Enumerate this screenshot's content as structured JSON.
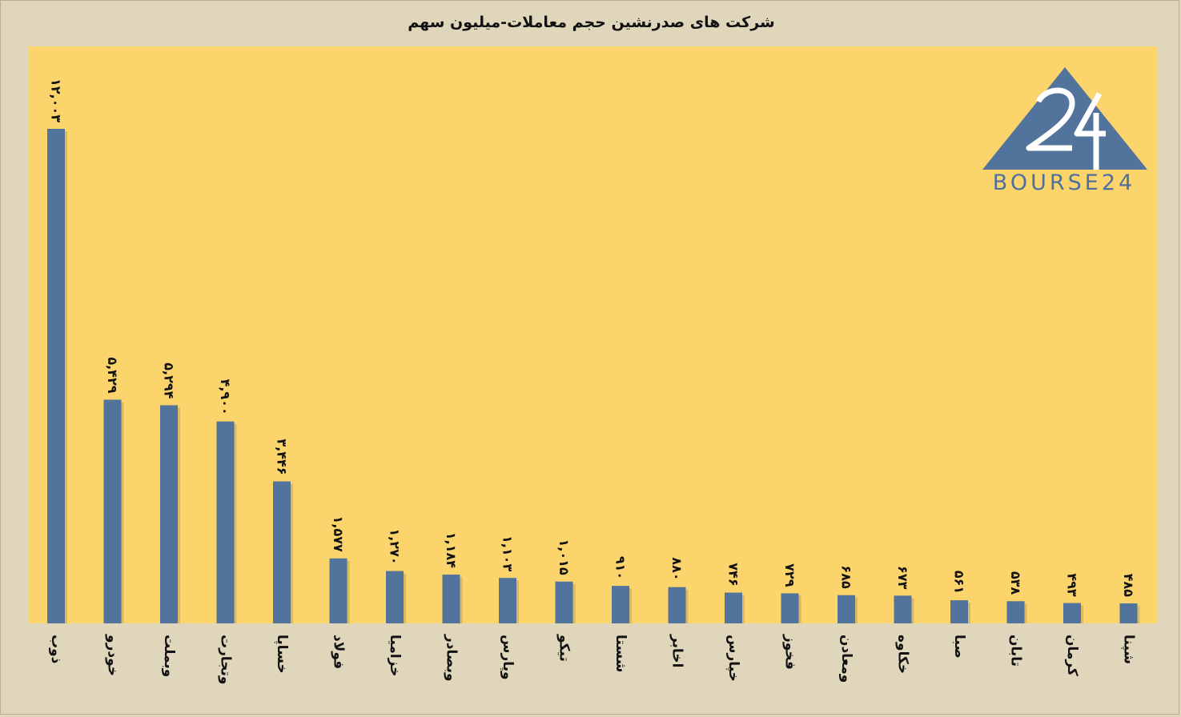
{
  "chart_data": {
    "type": "bar",
    "title": "شرکت های صدرنشین حجم معاملات-میلیون سهم",
    "xlabel": "",
    "ylabel": "",
    "ylim": [
      0,
      14000
    ],
    "grid": false,
    "legend": "none",
    "colors": {
      "bar": "#52739b",
      "plot_bg": "#fcd46c",
      "page_bg": "#e0d6bc"
    },
    "categories": [
      "ذوب",
      "خودرو",
      "وبملت",
      "وتجارت",
      "خساپا",
      "فولاد",
      "خزامیا",
      "وبصادر",
      "وپارس",
      "تیکو",
      "شستا",
      "اخابر",
      "خپارس",
      "فخوز",
      "ومعادن",
      "خکاوه",
      "صبا",
      "تابان",
      "کرمان",
      "شپنا"
    ],
    "values": [
      12003,
      5429,
      5294,
      4900,
      3446,
      1577,
      1270,
      1184,
      1103,
      1015,
      910,
      880,
      746,
      729,
      685,
      673,
      561,
      538,
      493,
      485
    ],
    "data_labels": [
      "۱۲,۰۰۳",
      "۵,۴۲۹",
      "۵,۲۹۴",
      "۴,۹۰۰",
      "۳,۴۴۶",
      "۱,۵۷۷",
      "۱,۲۷۰",
      "۱,۱۸۴",
      "۱,۱۰۳",
      "۱,۰۱۵",
      "۹۱۰",
      "۸۸۰",
      "۷۴۶",
      "۷۲۹",
      "۶۸۵",
      "۶۷۳",
      "۵۶۱",
      "۵۳۸",
      "۴۹۳",
      "۴۸۵"
    ]
  },
  "logo": {
    "text": "BOURSE24",
    "number": "24",
    "color": "#52739b"
  }
}
